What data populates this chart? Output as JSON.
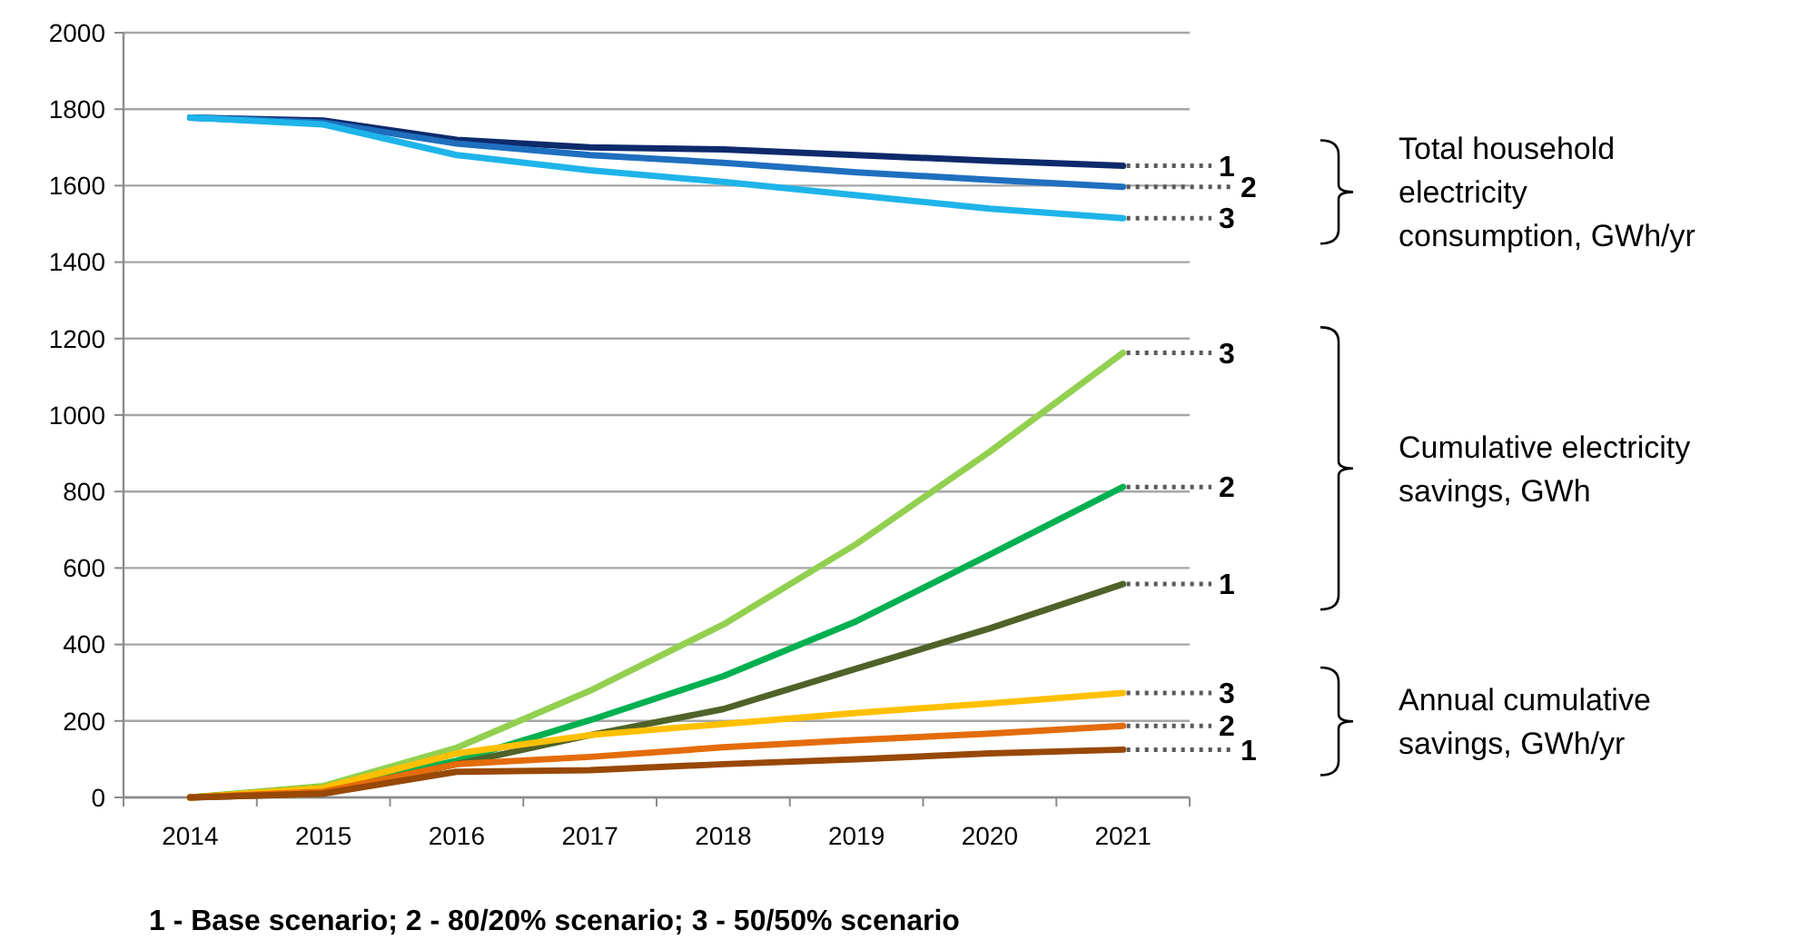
{
  "chart_data": {
    "type": "line",
    "categories": [
      "2014",
      "2015",
      "2016",
      "2017",
      "2018",
      "2019",
      "2020",
      "2021"
    ],
    "ylim": [
      0,
      2000
    ],
    "yticks": [
      0,
      200,
      400,
      600,
      800,
      1000,
      1200,
      1400,
      1600,
      1800,
      2000
    ],
    "grid": "y",
    "marker": "none",
    "line_style": "solid",
    "series": [
      {
        "name": "1",
        "color": "#0d2a6b",
        "values": [
          1778,
          1770,
          1720,
          1700,
          1695,
          1680,
          1665,
          1652
        ]
      },
      {
        "name": "2",
        "color": "#1f6fbf",
        "values": [
          1778,
          1765,
          1710,
          1680,
          1660,
          1635,
          1615,
          1597
        ]
      },
      {
        "name": "3",
        "color": "#1eb4ea",
        "values": [
          1778,
          1760,
          1680,
          1640,
          1610,
          1575,
          1540,
          1515
        ]
      },
      {
        "name": "3",
        "color": "#92d050",
        "values": [
          0,
          30,
          130,
          279,
          452,
          663,
          904,
          1163
        ]
      },
      {
        "name": "2",
        "color": "#00b050",
        "values": [
          0,
          25,
          96,
          202,
          317,
          461,
          635,
          812
        ]
      },
      {
        "name": "1",
        "color": "#4f6228",
        "values": [
          0,
          10,
          87,
          163,
          231,
          337,
          442,
          558
        ]
      },
      {
        "name": "3",
        "color": "#ffc000",
        "values": [
          0,
          25,
          115,
          163,
          192,
          221,
          246,
          273
        ]
      },
      {
        "name": "2",
        "color": "#e46c0a",
        "values": [
          0,
          15,
          87,
          106,
          131,
          150,
          167,
          187
        ]
      },
      {
        "name": "1",
        "color": "#984807",
        "values": [
          0,
          10,
          67,
          71,
          87,
          100,
          115,
          125
        ]
      }
    ],
    "annotations": [
      "Total household electricity consumption, GWh/yr",
      "Cumulative electricity savings, GWh",
      "Annual cumulative savings, GWh/yr",
      "1 - Base scenario; 2 - 80/20% scenario; 3 - 50/50% scenario"
    ]
  }
}
